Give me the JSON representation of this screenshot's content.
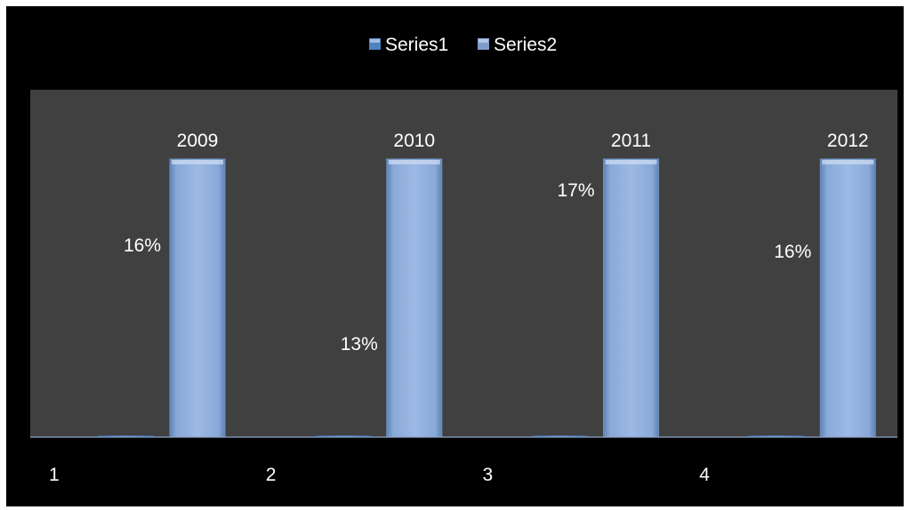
{
  "chart_data": {
    "type": "bar",
    "categories": [
      "1",
      "2",
      "3",
      "4"
    ],
    "series": [
      {
        "name": "Series1",
        "values": [
          0.16,
          0.13,
          0.17,
          0.16
        ],
        "data_labels": [
          "16%",
          "13%",
          "17%",
          "16%"
        ],
        "color": "#4F81BD"
      },
      {
        "name": "Series2",
        "values": [
          2009,
          2010,
          2011,
          2012
        ],
        "data_labels": [
          "2009",
          "2010",
          "2011",
          "2012"
        ],
        "color": "#95B3D7"
      }
    ],
    "ylim": [
      0,
      2200
    ],
    "legend_position": "top",
    "grid": false,
    "plot_background": "#404040",
    "chart_background": "#000000",
    "axis_line_color": "#8EA6C9"
  }
}
